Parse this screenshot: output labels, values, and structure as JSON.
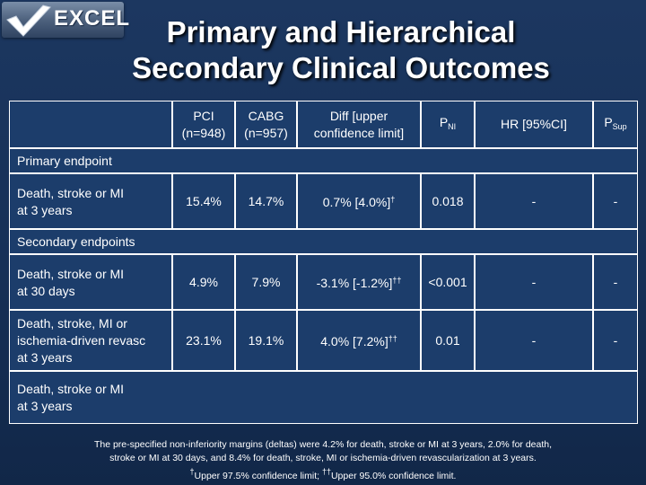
{
  "logo": {
    "text": "EXCEL"
  },
  "title": {
    "line1": "Primary and Hierarchical",
    "line2": "Secondary Clinical Outcomes"
  },
  "table": {
    "headers": {
      "pci_1": "PCI",
      "pci_2": "(n=948)",
      "cabg_1": "CABG",
      "cabg_2": "(n=957)",
      "diff_1": "Diff [upper",
      "diff_2": "confidence limit]",
      "pni_main": "P",
      "pni_sub": "NI",
      "hr": "HR [95%CI]",
      "psup_main": "P",
      "psup_sub": "Sup"
    },
    "sections": {
      "primary": "Primary endpoint",
      "secondary": "Secondary endpoints"
    },
    "rows": [
      {
        "label_1": "Death, stroke or MI",
        "label_2": "at 3 years",
        "label_3": "",
        "pci": "15.4%",
        "cabg": "14.7%",
        "diff": "0.7% [4.0%]",
        "diff_mark": "†",
        "pni": "0.018",
        "hr": "-",
        "psup": "-"
      },
      {
        "label_1": "Death, stroke or MI",
        "label_2": "at 30 days",
        "label_3": "",
        "pci": "4.9%",
        "cabg": "7.9%",
        "diff": "-3.1% [-1.2%]",
        "diff_mark": "††",
        "pni": "<0.001",
        "hr": "-",
        "psup": "-"
      },
      {
        "label_1": "Death, stroke, MI or",
        "label_2": "ischemia-driven revasc",
        "label_3": "at 3 years",
        "pci": "23.1%",
        "cabg": "19.1%",
        "diff": "4.0% [7.2%]",
        "diff_mark": "††",
        "pni": "0.01",
        "hr": "-",
        "psup": "-"
      },
      {
        "label_1": "Death, stroke or MI",
        "label_2": "at 3 years",
        "label_3": "",
        "pci": "",
        "cabg": "",
        "diff": "",
        "diff_mark": "",
        "pni": "",
        "hr": "",
        "psup": ""
      }
    ]
  },
  "footnote": {
    "line1": "The pre-specified non-inferiority margins (deltas) were 4.2% for death, stroke or MI at 3 years, 2.0% for death,",
    "line2": "stroke or MI at 30 days, and 8.4% for death, stroke, MI or ischemia-driven revascularization at 3 years.",
    "mark1": "†",
    "text1": "Upper 97.5% confidence limit; ",
    "mark2": "††",
    "text2": "Upper 95.0% confidence limit."
  }
}
